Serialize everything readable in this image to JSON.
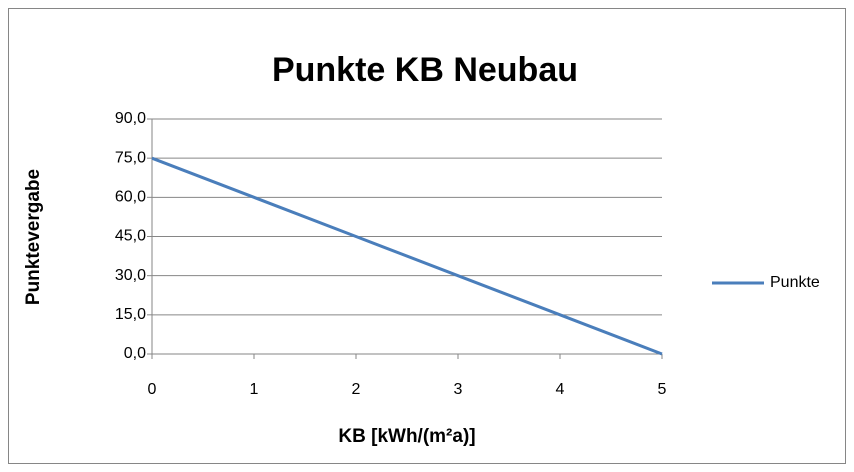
{
  "chart_data": {
    "type": "line",
    "title": "Punkte KB Neubau",
    "x_label": "KB [kWh/(m²a)]",
    "y_label": "Punktevergabe",
    "x": [
      0,
      1,
      2,
      3,
      4,
      5
    ],
    "series": [
      {
        "name": "Punkte",
        "color": "#4a7ebb",
        "values": [
          75,
          60,
          45,
          30,
          15,
          0
        ]
      }
    ],
    "xlim": [
      0,
      5
    ],
    "xticks": [
      0,
      1,
      2,
      3,
      4,
      5
    ],
    "ylim": [
      0,
      90
    ],
    "yticks": [
      {
        "value": 0,
        "label": "0,0"
      },
      {
        "value": 15,
        "label": "15,0"
      },
      {
        "value": 30,
        "label": "30,0"
      },
      {
        "value": 45,
        "label": "45,0"
      },
      {
        "value": 60,
        "label": "60,0"
      },
      {
        "value": 75,
        "label": "75,0"
      },
      {
        "value": 90,
        "label": "90,0"
      }
    ],
    "grid": true,
    "legend": "right"
  }
}
